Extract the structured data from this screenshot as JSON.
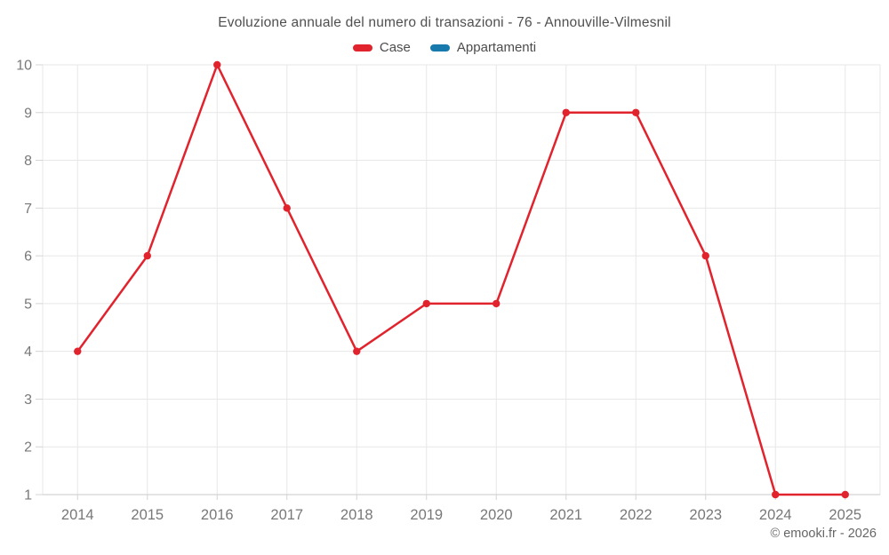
{
  "title": "Evoluzione annuale del numero di transazioni - 76 - Annouville-Vilmesnil",
  "footer": {
    "copyright": "© emooki.fr - 2026"
  },
  "chart_data": {
    "type": "line",
    "title": "Evoluzione annuale del numero di transazioni - 76 - Annouville-Vilmesnil",
    "categories": [
      "2014",
      "2015",
      "2016",
      "2017",
      "2018",
      "2019",
      "2020",
      "2021",
      "2022",
      "2023",
      "2024",
      "2025"
    ],
    "series": [
      {
        "name": "Case",
        "color": "#e1232d",
        "values": [
          4,
          6,
          10,
          7,
          4,
          5,
          5,
          9,
          9,
          6,
          1,
          1
        ]
      },
      {
        "name": "Appartamenti",
        "color": "#1879ad",
        "values": []
      }
    ],
    "xlabel": "",
    "ylabel": "",
    "ylim": [
      1,
      10
    ],
    "ytick_step": 1,
    "grid": true,
    "legend_position": "top",
    "marker": "circle",
    "annotations": []
  },
  "colors": {
    "grid": "#e7e7e7",
    "axis_line": "#c9c9c9",
    "tick": "#d4d4d4",
    "axis_label": "#787878",
    "title": "#4f4f4f"
  }
}
